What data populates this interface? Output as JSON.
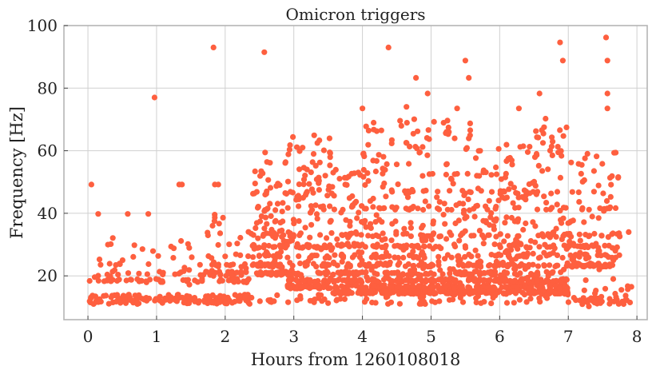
{
  "chart_data": {
    "type": "scatter",
    "title": "Omicron triggers",
    "xlabel": "Hours from 1260108018",
    "ylabel": "Frequency [Hz]",
    "xlim": [
      -0.35,
      8.15
    ],
    "ylim": [
      6,
      100
    ],
    "xticks": [
      0,
      1,
      2,
      3,
      4,
      5,
      6,
      7,
      8
    ],
    "yticks": [
      20,
      40,
      60,
      80,
      100
    ],
    "grid": true,
    "color": "#fe5f3f",
    "notable_points": [
      {
        "x": 0.05,
        "y": 49.2
      },
      {
        "x": 0.15,
        "y": 39.8
      },
      {
        "x": 0.58,
        "y": 39.8
      },
      {
        "x": 0.88,
        "y": 39.8
      },
      {
        "x": 0.97,
        "y": 77.0
      },
      {
        "x": 1.33,
        "y": 49.2
      },
      {
        "x": 1.37,
        "y": 49.2
      },
      {
        "x": 1.83,
        "y": 93.0
      },
      {
        "x": 1.85,
        "y": 49.2
      },
      {
        "x": 1.9,
        "y": 49.2
      },
      {
        "x": 2.57,
        "y": 91.5
      },
      {
        "x": 4.38,
        "y": 93.0
      },
      {
        "x": 4.78,
        "y": 83.3
      },
      {
        "x": 4.95,
        "y": 78.3
      },
      {
        "x": 5.5,
        "y": 88.8
      },
      {
        "x": 5.55,
        "y": 83.3
      },
      {
        "x": 6.58,
        "y": 78.3
      },
      {
        "x": 6.88,
        "y": 94.6
      },
      {
        "x": 6.92,
        "y": 88.8
      },
      {
        "x": 7.55,
        "y": 96.2
      },
      {
        "x": 7.57,
        "y": 88.8
      },
      {
        "x": 7.57,
        "y": 78.3
      },
      {
        "x": 7.57,
        "y": 73.5
      },
      {
        "x": 4.0,
        "y": 73.5
      },
      {
        "x": 5.38,
        "y": 73.5
      },
      {
        "x": 6.28,
        "y": 73.5
      },
      {
        "x": 7.88,
        "y": 34.0
      },
      {
        "x": 7.92,
        "y": 16.5
      },
      {
        "x": 7.9,
        "y": 11.5
      }
    ],
    "clusters": [
      {
        "x_range": [
          0.0,
          2.4
        ],
        "y_range": [
          11,
          14
        ],
        "count": 140
      },
      {
        "x_range": [
          2.4,
          7.2
        ],
        "y_range": [
          11,
          14
        ],
        "count": 70
      },
      {
        "x_range": [
          7.2,
          7.9
        ],
        "y_range": [
          10,
          22
        ],
        "count": 40
      },
      {
        "x_range": [
          0.0,
          0.6
        ],
        "y_range": [
          17,
          33
        ],
        "count": 28
      },
      {
        "x_range": [
          0.6,
          1.6
        ],
        "y_range": [
          17,
          32
        ],
        "count": 45
      },
      {
        "x_range": [
          1.6,
          2.4
        ],
        "y_range": [
          18,
          40
        ],
        "count": 80
      },
      {
        "x_range": [
          2.4,
          2.9
        ],
        "y_range": [
          20,
          61
        ],
        "count": 150
      },
      {
        "x_range": [
          2.9,
          3.55
        ],
        "y_range": [
          16,
          65
        ],
        "count": 240
      },
      {
        "x_range": [
          3.55,
          4.0
        ],
        "y_range": [
          14,
          55
        ],
        "count": 160
      },
      {
        "x_range": [
          4.0,
          4.6
        ],
        "y_range": [
          14,
          70
        ],
        "count": 230
      },
      {
        "x_range": [
          4.6,
          5.0
        ],
        "y_range": [
          14,
          75
        ],
        "count": 170
      },
      {
        "x_range": [
          5.0,
          5.6
        ],
        "y_range": [
          14,
          70
        ],
        "count": 220
      },
      {
        "x_range": [
          5.6,
          6.0
        ],
        "y_range": [
          14,
          62
        ],
        "count": 150
      },
      {
        "x_range": [
          6.0,
          6.5
        ],
        "y_range": [
          14,
          62
        ],
        "count": 190
      },
      {
        "x_range": [
          6.5,
          7.0
        ],
        "y_range": [
          14,
          72
        ],
        "count": 200
      },
      {
        "x_range": [
          7.0,
          7.75
        ],
        "y_range": [
          22,
          61
        ],
        "count": 140
      }
    ]
  }
}
